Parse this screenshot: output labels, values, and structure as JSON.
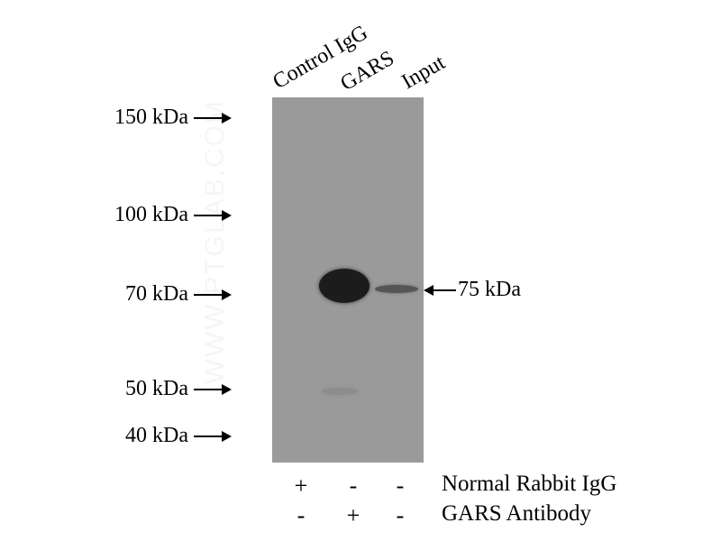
{
  "lanes": [
    "Control IgG",
    "GARS",
    "Input"
  ],
  "markers": [
    "150 kDa",
    "100 kDa",
    "70 kDa",
    "50 kDa",
    "40 kDa"
  ],
  "target_band": "75 kDa",
  "conditions": [
    {
      "label": "Normal Rabbit IgG",
      "values": [
        "+",
        "-",
        "-"
      ]
    },
    {
      "label": "GARS Antibody",
      "values": [
        "-",
        "+",
        "-"
      ]
    }
  ],
  "watermark": "WWW.PTGLAB.COM",
  "colors": {
    "membrane": "#9a9a9a",
    "band": "#1a1a1a"
  }
}
